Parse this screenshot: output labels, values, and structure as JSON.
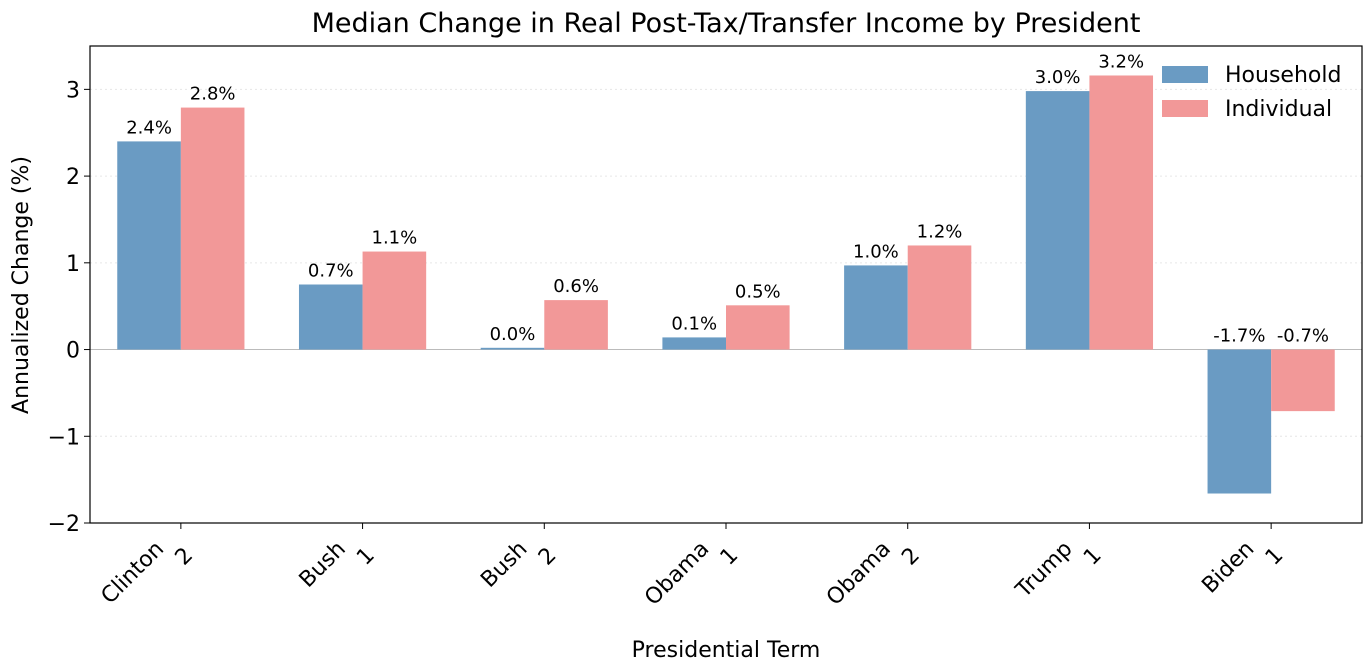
{
  "chart_data": {
    "type": "bar",
    "title": "Median Change in Real Post-Tax/Transfer Income by President",
    "xlabel": "Presidential Term",
    "ylabel": "Annualized Change (%)",
    "categories": [
      [
        "Clinton",
        "2"
      ],
      [
        "Bush",
        "1"
      ],
      [
        "Bush",
        "2"
      ],
      [
        "Obama",
        "1"
      ],
      [
        "Obama",
        "2"
      ],
      [
        "Trump",
        "1"
      ],
      [
        "Biden",
        "1"
      ]
    ],
    "series": [
      {
        "name": "Household",
        "color": "#6a9bc3",
        "values": [
          2.4,
          0.75,
          0.02,
          0.14,
          0.97,
          2.98,
          -1.66
        ],
        "labels": [
          "2.4%",
          "0.7%",
          "0.0%",
          "0.1%",
          "1.0%",
          "3.0%",
          "-1.7%"
        ]
      },
      {
        "name": "Individual",
        "color": "#f29898",
        "values": [
          2.79,
          1.13,
          0.57,
          0.51,
          1.2,
          3.16,
          -0.71
        ],
        "labels": [
          "2.8%",
          "1.1%",
          "0.6%",
          "0.5%",
          "1.2%",
          "3.2%",
          "-0.7%"
        ]
      }
    ],
    "ylim": [
      -2,
      3.5
    ],
    "yticks": [
      -2,
      -1,
      0,
      1,
      2,
      3
    ],
    "ytick_labels": [
      "−2",
      "−1",
      "0",
      "1",
      "2",
      "3"
    ],
    "grid": "horizontal dotted",
    "legend": "top-right"
  }
}
